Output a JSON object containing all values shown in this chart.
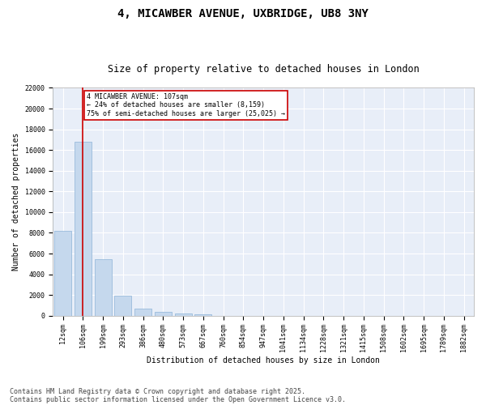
{
  "title_line1": "4, MICAWBER AVENUE, UXBRIDGE, UB8 3NY",
  "title_line2": "Size of property relative to detached houses in London",
  "xlabel": "Distribution of detached houses by size in London",
  "ylabel": "Number of detached properties",
  "categories": [
    "12sqm",
    "106sqm",
    "199sqm",
    "293sqm",
    "386sqm",
    "480sqm",
    "573sqm",
    "667sqm",
    "760sqm",
    "854sqm",
    "947sqm",
    "1041sqm",
    "1134sqm",
    "1228sqm",
    "1321sqm",
    "1415sqm",
    "1508sqm",
    "1602sqm",
    "1695sqm",
    "1789sqm",
    "1882sqm"
  ],
  "values": [
    8200,
    16800,
    5450,
    1900,
    680,
    380,
    250,
    150,
    0,
    0,
    0,
    0,
    0,
    0,
    0,
    0,
    0,
    0,
    0,
    0,
    0
  ],
  "bar_color": "#c5d8ed",
  "bar_edge_color": "#8db4d8",
  "vline_x": 1,
  "vline_color": "#cc0000",
  "annotation_text": "4 MICAWBER AVENUE: 107sqm\n← 24% of detached houses are smaller (8,159)\n75% of semi-detached houses are larger (25,025) →",
  "annotation_box_color": "#cc0000",
  "annotation_text_color": "#000000",
  "ylim": [
    0,
    22000
  ],
  "yticks": [
    0,
    2000,
    4000,
    6000,
    8000,
    10000,
    12000,
    14000,
    16000,
    18000,
    20000,
    22000
  ],
  "background_color": "#e8eef8",
  "grid_color": "#ffffff",
  "footer_line1": "Contains HM Land Registry data © Crown copyright and database right 2025.",
  "footer_line2": "Contains public sector information licensed under the Open Government Licence v3.0.",
  "title_fontsize": 10,
  "subtitle_fontsize": 8.5,
  "label_fontsize": 7,
  "tick_fontsize": 6,
  "annotation_fontsize": 6,
  "footer_fontsize": 6
}
